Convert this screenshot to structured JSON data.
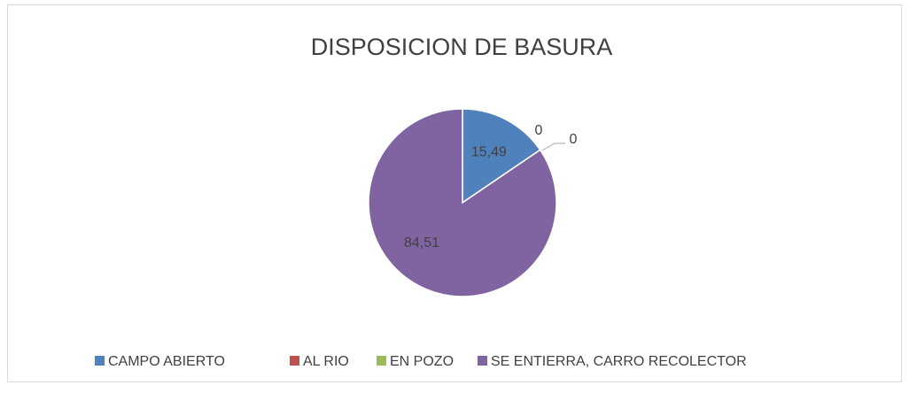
{
  "chart_data": {
    "type": "pie",
    "title": "DISPOSICION DE BASURA",
    "categories": [
      "CAMPO ABIERTO",
      "AL RIO",
      "EN POZO",
      "SE ENTIERRA, CARRO RECOLECTOR"
    ],
    "values": [
      15.49,
      0,
      0,
      84.51
    ],
    "value_labels": [
      "15,49",
      "0",
      "0",
      "84,51"
    ],
    "colors": [
      "#4f81bd",
      "#c0504d",
      "#9bbb59",
      "#8064a2"
    ],
    "legend": "bottom"
  }
}
